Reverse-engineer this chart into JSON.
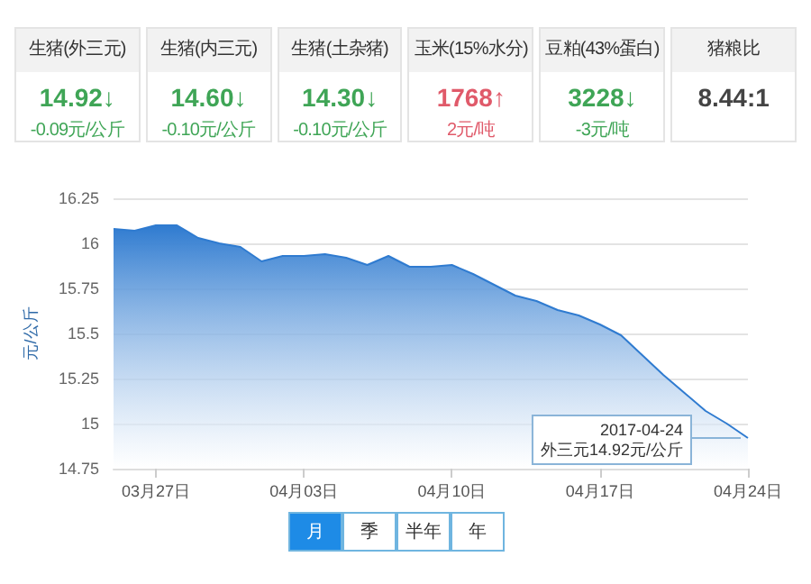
{
  "chart_data": [
    {
      "type": "other",
      "annotations": [
        "生猪(外三元)",
        "生猪(内三元)",
        "生猪(土杂猪)",
        "玉米(15%水分)",
        "豆粕(43%蛋白)",
        "猪粮比",
        "14.92↓",
        "14.60↓",
        "14.30↓",
        "1768↑",
        "3228↓",
        "8.44:1",
        "-0.09元/公斤",
        "-0.10元/公斤",
        "-0.10元/公斤",
        "2元/吨",
        "-3元/吨"
      ],
      "colors": [
        "#3fa556",
        "#3fa556",
        "#3fa556",
        "#e05a6a",
        "#3fa556",
        "#444444"
      ]
    },
    {
      "type": "area",
      "ylabel": "元/公斤",
      "color": "#2f7bd0",
      "x": [
        "2017-03-25",
        "2017-03-26",
        "2017-03-27",
        "2017-03-28",
        "2017-03-29",
        "2017-03-30",
        "2017-03-31",
        "2017-04-01",
        "2017-04-02",
        "2017-04-03",
        "2017-04-04",
        "2017-04-05",
        "2017-04-06",
        "2017-04-07",
        "2017-04-08",
        "2017-04-09",
        "2017-04-10",
        "2017-04-11",
        "2017-04-12",
        "2017-04-13",
        "2017-04-14",
        "2017-04-15",
        "2017-04-16",
        "2017-04-17",
        "2017-04-18",
        "2017-04-19",
        "2017-04-20",
        "2017-04-21",
        "2017-04-22",
        "2017-04-23",
        "2017-04-24"
      ],
      "values": [
        16.08,
        16.07,
        16.1,
        16.1,
        16.03,
        16.0,
        15.98,
        15.9,
        15.93,
        15.93,
        15.94,
        15.92,
        15.88,
        15.93,
        15.87,
        15.87,
        15.88,
        15.83,
        15.77,
        15.71,
        15.68,
        15.63,
        15.6,
        15.55,
        15.49,
        15.38,
        15.27,
        15.17,
        15.07,
        15.0,
        14.92
      ],
      "xlim": [
        "2017-03-25",
        "2017-04-24"
      ],
      "xticks": [
        {
          "value": "2017-03-27",
          "label": "03月27日"
        },
        {
          "value": "2017-04-03",
          "label": "04月03日"
        },
        {
          "value": "2017-04-10",
          "label": "04月10日"
        },
        {
          "value": "2017-04-17",
          "label": "04月17日"
        },
        {
          "value": "2017-04-24",
          "label": "04月24日"
        }
      ],
      "ylim": [
        14.75,
        16.25
      ],
      "yticks": [
        14.75,
        15,
        15.25,
        15.5,
        15.75,
        16,
        16.25
      ],
      "grid": "y",
      "marker": "none",
      "annotations": [
        "2017-04-24\n外三元14.92元/公斤",
        "月",
        "季",
        "半年",
        "年"
      ]
    }
  ]
}
